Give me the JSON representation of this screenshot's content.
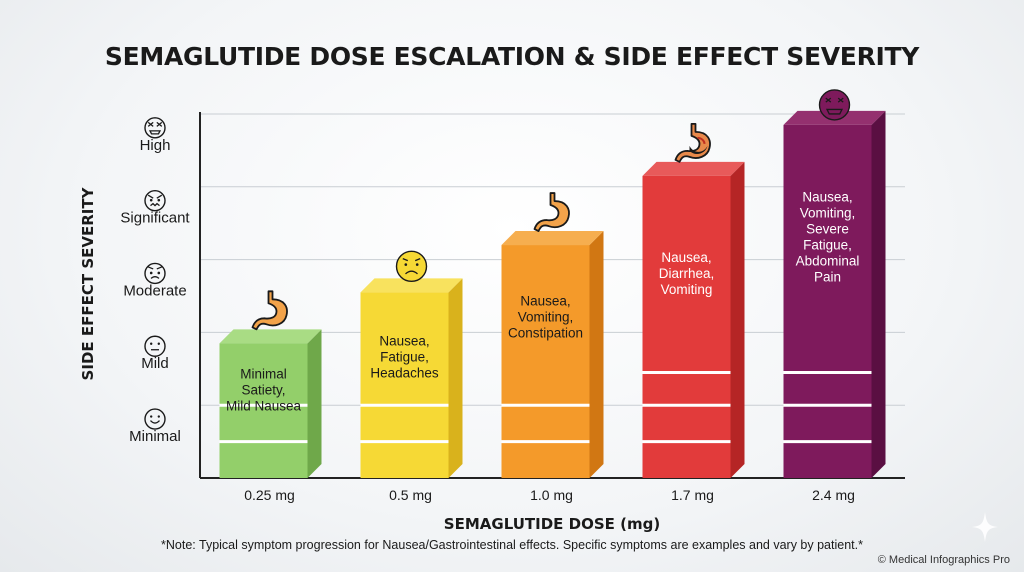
{
  "chart_data": {
    "type": "bar",
    "title": "SEMAGLUTIDE DOSE ESCALATION & SIDE EFFECT SEVERITY",
    "xlabel": "SEMAGLUTIDE DOSE (mg)",
    "ylabel": "SIDE EFFECT SEVERITY",
    "categories": [
      "0.25 mg",
      "0.5 mg",
      "1.0 mg",
      "1.7 mg",
      "2.4 mg"
    ],
    "values": [
      1.85,
      2.55,
      3.2,
      4.15,
      4.85
    ],
    "ylim": [
      0,
      5
    ],
    "y_levels": [
      "Minimal",
      "Mild",
      "Moderate",
      "Significant",
      "High"
    ],
    "bar_labels": [
      "Minimal\nSatiety,\nMild Nausea",
      "Nausea,\nFatigue,\nHeadaches",
      "Nausea,\nVomiting,\nConstipation",
      "Nausea,\nDiarrhea,\nVomiting",
      "Nausea,\nVomiting,\nSevere\nFatigue,\nAbdominal\nPain"
    ],
    "bar_icons": [
      "stomach-icon",
      "sad-face-icon",
      "stomach-icon",
      "inflamed-stomach-icon",
      "nauseated-face-icon"
    ],
    "level_icons": [
      "smile-face-icon",
      "neutral-face-icon",
      "worried-face-icon",
      "distressed-face-icon",
      "sick-face-icon"
    ],
    "colors": {
      "front": [
        "#93cf6a",
        "#f6d935",
        "#f49a2a",
        "#e23b3b",
        "#7e1a5c"
      ],
      "side": [
        "#6fa84a",
        "#d9b21c",
        "#d17713",
        "#b52525",
        "#5a0f42"
      ],
      "top": [
        "#a9dc84",
        "#f8e25e",
        "#f6ae4f",
        "#e85a5a",
        "#94306f"
      ],
      "text": [
        "#1a1a1a",
        "#1a1a1a",
        "#1a1a1a",
        "#ffffff",
        "#ffffff"
      ]
    },
    "grid": true
  },
  "note": "*Note: Typical symptom progression for Nausea/Gastrointestinal effects. Specific symptoms are examples and vary by patient.*",
  "copyright": "© Medical Infographics Pro"
}
